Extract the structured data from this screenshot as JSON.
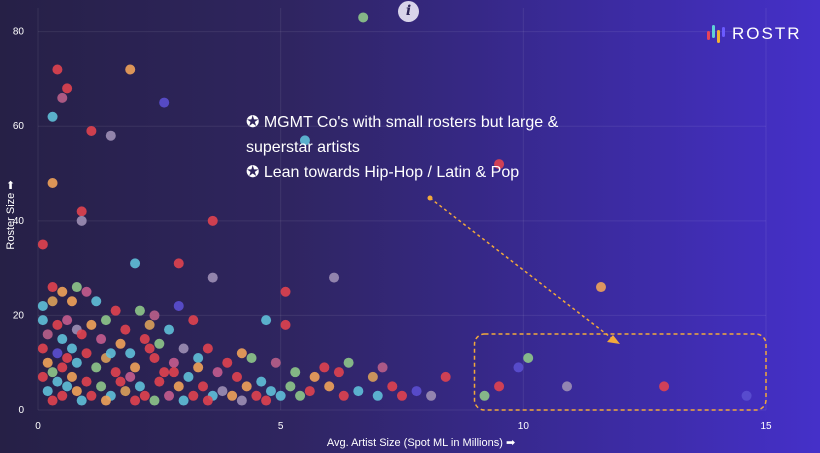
{
  "brand": {
    "name": "ROSTR",
    "colors": [
      "#e5435a",
      "#5fd1d6",
      "#f2b233",
      "#6b5bff"
    ]
  },
  "info_icon": {
    "glyph": "i"
  },
  "annotation": {
    "lines": [
      "✪ MGMT Co's with small rosters but large &",
      "superstar artists",
      "✪ Lean towards Hip-Hop / Latin & Pop"
    ]
  },
  "chart_data": {
    "type": "scatter",
    "xlabel": "Avg. Artist Size (Spot ML in Millions) ➡",
    "ylabel": "Roster Size ➡",
    "xlim": [
      0,
      15
    ],
    "ylim": [
      0,
      85
    ],
    "xticks": [
      0,
      5,
      10,
      15
    ],
    "yticks": [
      0,
      20,
      40,
      60,
      80
    ],
    "grid": true,
    "highlight_region": {
      "x": [
        9.2,
        15.0
      ],
      "y": [
        0,
        15
      ]
    },
    "palette": [
      "#e0434f",
      "#f0a259",
      "#5fc0d8",
      "#8ec78a",
      "#c45c8e",
      "#5b4fd0",
      "#9d8fb5",
      "#d9a05a",
      "#b95f8a"
    ],
    "points": [
      {
        "x": 6.7,
        "y": 83,
        "c": 3
      },
      {
        "x": 0.4,
        "y": 72,
        "c": 0
      },
      {
        "x": 1.9,
        "y": 72,
        "c": 1
      },
      {
        "x": 0.6,
        "y": 68,
        "c": 0
      },
      {
        "x": 0.5,
        "y": 66,
        "c": 8
      },
      {
        "x": 2.6,
        "y": 65,
        "c": 5
      },
      {
        "x": 0.3,
        "y": 62,
        "c": 2
      },
      {
        "x": 1.1,
        "y": 59,
        "c": 0
      },
      {
        "x": 1.5,
        "y": 58,
        "c": 6
      },
      {
        "x": 5.5,
        "y": 57,
        "c": 2
      },
      {
        "x": 9.5,
        "y": 52,
        "c": 0
      },
      {
        "x": 0.3,
        "y": 48,
        "c": 1
      },
      {
        "x": 0.9,
        "y": 42,
        "c": 0
      },
      {
        "x": 0.9,
        "y": 40,
        "c": 6
      },
      {
        "x": 3.6,
        "y": 40,
        "c": 0
      },
      {
        "x": 0.1,
        "y": 35,
        "c": 0
      },
      {
        "x": 2.0,
        "y": 31,
        "c": 2
      },
      {
        "x": 2.9,
        "y": 31,
        "c": 0
      },
      {
        "x": 3.6,
        "y": 28,
        "c": 6
      },
      {
        "x": 6.1,
        "y": 28,
        "c": 6
      },
      {
        "x": 11.6,
        "y": 26,
        "c": 1
      },
      {
        "x": 0.3,
        "y": 26,
        "c": 0
      },
      {
        "x": 0.5,
        "y": 25,
        "c": 1
      },
      {
        "x": 0.8,
        "y": 26,
        "c": 3
      },
      {
        "x": 1.0,
        "y": 25,
        "c": 4
      },
      {
        "x": 5.1,
        "y": 25,
        "c": 0
      },
      {
        "x": 0.3,
        "y": 23,
        "c": 7
      },
      {
        "x": 0.7,
        "y": 23,
        "c": 1
      },
      {
        "x": 1.2,
        "y": 23,
        "c": 2
      },
      {
        "x": 1.6,
        "y": 21,
        "c": 0
      },
      {
        "x": 2.9,
        "y": 22,
        "c": 5
      },
      {
        "x": 2.1,
        "y": 21,
        "c": 3
      },
      {
        "x": 3.2,
        "y": 19,
        "c": 0
      },
      {
        "x": 4.7,
        "y": 19,
        "c": 2
      },
      {
        "x": 5.1,
        "y": 18,
        "c": 0
      },
      {
        "x": 0.1,
        "y": 19,
        "c": 2
      },
      {
        "x": 0.4,
        "y": 18,
        "c": 0
      },
      {
        "x": 0.6,
        "y": 19,
        "c": 4
      },
      {
        "x": 0.8,
        "y": 17,
        "c": 6
      },
      {
        "x": 1.1,
        "y": 18,
        "c": 1
      },
      {
        "x": 1.4,
        "y": 19,
        "c": 3
      },
      {
        "x": 1.8,
        "y": 17,
        "c": 0
      },
      {
        "x": 2.3,
        "y": 18,
        "c": 7
      },
      {
        "x": 2.7,
        "y": 17,
        "c": 2
      },
      {
        "x": 0.2,
        "y": 16,
        "c": 8
      },
      {
        "x": 0.5,
        "y": 15,
        "c": 2
      },
      {
        "x": 0.9,
        "y": 16,
        "c": 0
      },
      {
        "x": 1.3,
        "y": 15,
        "c": 4
      },
      {
        "x": 1.7,
        "y": 14,
        "c": 1
      },
      {
        "x": 2.2,
        "y": 15,
        "c": 0
      },
      {
        "x": 2.5,
        "y": 14,
        "c": 3
      },
      {
        "x": 3.0,
        "y": 13,
        "c": 6
      },
      {
        "x": 3.5,
        "y": 13,
        "c": 0
      },
      {
        "x": 4.2,
        "y": 12,
        "c": 1
      },
      {
        "x": 0.1,
        "y": 13,
        "c": 0
      },
      {
        "x": 0.4,
        "y": 12,
        "c": 5
      },
      {
        "x": 0.7,
        "y": 13,
        "c": 2
      },
      {
        "x": 1.0,
        "y": 12,
        "c": 0
      },
      {
        "x": 1.4,
        "y": 11,
        "c": 7
      },
      {
        "x": 1.9,
        "y": 12,
        "c": 2
      },
      {
        "x": 2.4,
        "y": 11,
        "c": 0
      },
      {
        "x": 2.8,
        "y": 10,
        "c": 4
      },
      {
        "x": 3.3,
        "y": 11,
        "c": 2
      },
      {
        "x": 3.9,
        "y": 10,
        "c": 0
      },
      {
        "x": 4.4,
        "y": 11,
        "c": 3
      },
      {
        "x": 6.4,
        "y": 10,
        "c": 3
      },
      {
        "x": 4.9,
        "y": 10,
        "c": 8
      },
      {
        "x": 5.9,
        "y": 9,
        "c": 0
      },
      {
        "x": 7.1,
        "y": 9,
        "c": 8
      },
      {
        "x": 9.5,
        "y": 5,
        "c": 0
      },
      {
        "x": 9.9,
        "y": 9,
        "c": 5
      },
      {
        "x": 10.1,
        "y": 11,
        "c": 3
      },
      {
        "x": 9.2,
        "y": 3,
        "c": 3
      },
      {
        "x": 10.9,
        "y": 5,
        "c": 6
      },
      {
        "x": 12.9,
        "y": 5,
        "c": 0
      },
      {
        "x": 14.6,
        "y": 3,
        "c": 5
      },
      {
        "x": 0.2,
        "y": 10,
        "c": 1
      },
      {
        "x": 0.5,
        "y": 9,
        "c": 0
      },
      {
        "x": 0.8,
        "y": 10,
        "c": 2
      },
      {
        "x": 1.2,
        "y": 9,
        "c": 3
      },
      {
        "x": 1.6,
        "y": 8,
        "c": 0
      },
      {
        "x": 2.0,
        "y": 9,
        "c": 1
      },
      {
        "x": 2.6,
        "y": 8,
        "c": 0
      },
      {
        "x": 3.1,
        "y": 7,
        "c": 2
      },
      {
        "x": 3.7,
        "y": 8,
        "c": 4
      },
      {
        "x": 4.1,
        "y": 7,
        "c": 0
      },
      {
        "x": 4.6,
        "y": 6,
        "c": 2
      },
      {
        "x": 5.3,
        "y": 8,
        "c": 3
      },
      {
        "x": 5.7,
        "y": 7,
        "c": 1
      },
      {
        "x": 6.2,
        "y": 8,
        "c": 0
      },
      {
        "x": 6.9,
        "y": 7,
        "c": 7
      },
      {
        "x": 8.4,
        "y": 7,
        "c": 0
      },
      {
        "x": 0.1,
        "y": 7,
        "c": 0
      },
      {
        "x": 0.4,
        "y": 6,
        "c": 2
      },
      {
        "x": 0.7,
        "y": 7,
        "c": 1
      },
      {
        "x": 1.0,
        "y": 6,
        "c": 0
      },
      {
        "x": 1.3,
        "y": 5,
        "c": 3
      },
      {
        "x": 1.7,
        "y": 6,
        "c": 0
      },
      {
        "x": 2.1,
        "y": 5,
        "c": 2
      },
      {
        "x": 2.5,
        "y": 6,
        "c": 0
      },
      {
        "x": 2.9,
        "y": 5,
        "c": 1
      },
      {
        "x": 3.4,
        "y": 5,
        "c": 0
      },
      {
        "x": 3.8,
        "y": 4,
        "c": 6
      },
      {
        "x": 4.3,
        "y": 5,
        "c": 1
      },
      {
        "x": 4.8,
        "y": 4,
        "c": 2
      },
      {
        "x": 5.2,
        "y": 5,
        "c": 3
      },
      {
        "x": 5.6,
        "y": 4,
        "c": 0
      },
      {
        "x": 6.0,
        "y": 5,
        "c": 1
      },
      {
        "x": 6.6,
        "y": 4,
        "c": 2
      },
      {
        "x": 7.3,
        "y": 5,
        "c": 0
      },
      {
        "x": 7.8,
        "y": 4,
        "c": 5
      },
      {
        "x": 7.5,
        "y": 3,
        "c": 0
      },
      {
        "x": 8.1,
        "y": 3,
        "c": 6
      },
      {
        "x": 0.2,
        "y": 4,
        "c": 2
      },
      {
        "x": 0.5,
        "y": 3,
        "c": 0
      },
      {
        "x": 0.8,
        "y": 4,
        "c": 1
      },
      {
        "x": 1.1,
        "y": 3,
        "c": 0
      },
      {
        "x": 1.5,
        "y": 3,
        "c": 2
      },
      {
        "x": 1.8,
        "y": 4,
        "c": 7
      },
      {
        "x": 2.2,
        "y": 3,
        "c": 0
      },
      {
        "x": 2.7,
        "y": 3,
        "c": 4
      },
      {
        "x": 3.2,
        "y": 3,
        "c": 0
      },
      {
        "x": 3.6,
        "y": 3,
        "c": 2
      },
      {
        "x": 4.0,
        "y": 3,
        "c": 1
      },
      {
        "x": 4.5,
        "y": 3,
        "c": 0
      },
      {
        "x": 5.0,
        "y": 3,
        "c": 2
      },
      {
        "x": 5.4,
        "y": 3,
        "c": 3
      },
      {
        "x": 6.3,
        "y": 3,
        "c": 0
      },
      {
        "x": 7.0,
        "y": 3,
        "c": 2
      },
      {
        "x": 0.3,
        "y": 2,
        "c": 0
      },
      {
        "x": 0.9,
        "y": 2,
        "c": 2
      },
      {
        "x": 1.4,
        "y": 2,
        "c": 1
      },
      {
        "x": 2.0,
        "y": 2,
        "c": 0
      },
      {
        "x": 2.4,
        "y": 2,
        "c": 3
      },
      {
        "x": 3.0,
        "y": 2,
        "c": 2
      },
      {
        "x": 3.5,
        "y": 2,
        "c": 0
      },
      {
        "x": 4.2,
        "y": 2,
        "c": 6
      },
      {
        "x": 4.7,
        "y": 2,
        "c": 0
      },
      {
        "x": 0.6,
        "y": 5,
        "c": 2
      },
      {
        "x": 1.9,
        "y": 7,
        "c": 4
      },
      {
        "x": 2.8,
        "y": 8,
        "c": 0
      },
      {
        "x": 3.3,
        "y": 9,
        "c": 1
      },
      {
        "x": 0.3,
        "y": 8,
        "c": 3
      },
      {
        "x": 0.6,
        "y": 11,
        "c": 0
      },
      {
        "x": 1.5,
        "y": 12,
        "c": 2
      },
      {
        "x": 2.3,
        "y": 13,
        "c": 0
      },
      {
        "x": 0.1,
        "y": 22,
        "c": 2
      },
      {
        "x": 2.4,
        "y": 20,
        "c": 8
      }
    ]
  }
}
